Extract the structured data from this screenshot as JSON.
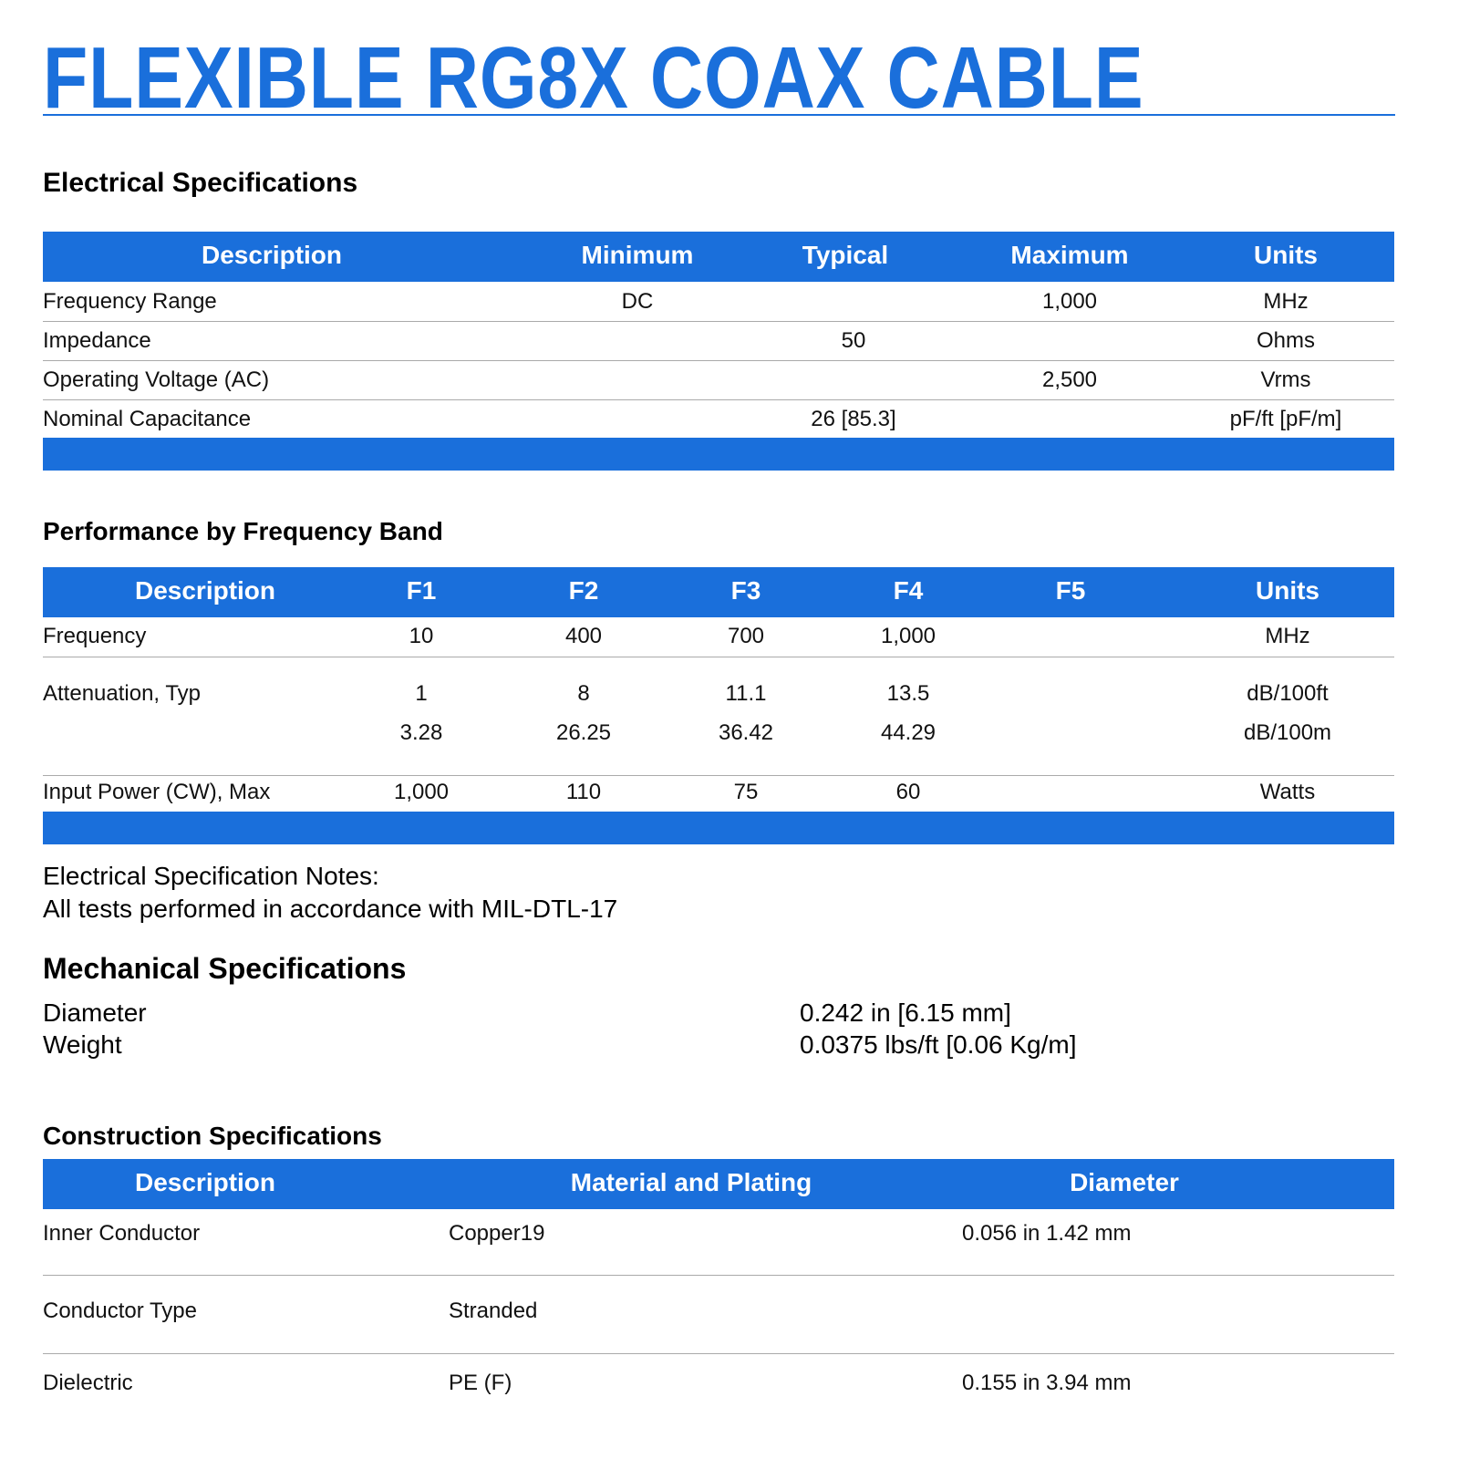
{
  "title": "FLEXIBLE RG8X COAX CABLE",
  "accent_color": "#1a6fdb",
  "electrical": {
    "heading": "Electrical Specifications",
    "headers": [
      "Description",
      "Minimum",
      "Typical",
      "Maximum",
      "Units"
    ],
    "rows": [
      [
        "Frequency Range",
        "DC",
        "",
        "1,000",
        "MHz"
      ],
      [
        "Impedance",
        "",
        "50",
        "",
        "Ohms"
      ],
      [
        "Operating Voltage (AC)",
        "",
        "",
        "2,500",
        "Vrms"
      ],
      [
        "Nominal Capacitance",
        "",
        "26 [85.3]",
        "",
        "pF/ft [pF/m]"
      ]
    ]
  },
  "performance": {
    "heading": "Performance by Frequency Band",
    "headers": [
      "Description",
      "F1",
      "F2",
      "F3",
      "F4",
      "F5",
      "Units"
    ],
    "rows": [
      [
        "Frequency",
        "10",
        "400",
        "700",
        "1,000",
        "",
        "MHz"
      ],
      [
        "Attenuation, Typ",
        "1",
        "8",
        "11.1",
        "13.5",
        "",
        "dB/100ft"
      ],
      [
        "",
        "3.28",
        "26.25",
        "36.42",
        "44.29",
        "",
        "dB/100m"
      ],
      [
        "Input Power (CW), Max",
        "1,000",
        "110",
        "75",
        "60",
        "",
        "Watts"
      ]
    ]
  },
  "notes": {
    "title": "Electrical Specification Notes:",
    "text": "All tests performed in accordance with MIL-DTL-17"
  },
  "mechanical": {
    "heading": "Mechanical Specifications",
    "rows": [
      [
        "Diameter",
        "0.242 in [6.15 mm]"
      ],
      [
        "Weight",
        "0.0375 lbs/ft [0.06 Kg/m]"
      ]
    ]
  },
  "construction": {
    "heading": "Construction Specifications",
    "headers": [
      "Description",
      "Material and Plating",
      "Diameter"
    ],
    "rows": [
      [
        "Inner Conductor",
        "Copper19",
        "0.056 in 1.42 mm"
      ],
      [
        "Conductor Type",
        "Stranded",
        ""
      ],
      [
        "Dielectric",
        "PE (F)",
        "0.155 in 3.94 mm"
      ]
    ]
  }
}
